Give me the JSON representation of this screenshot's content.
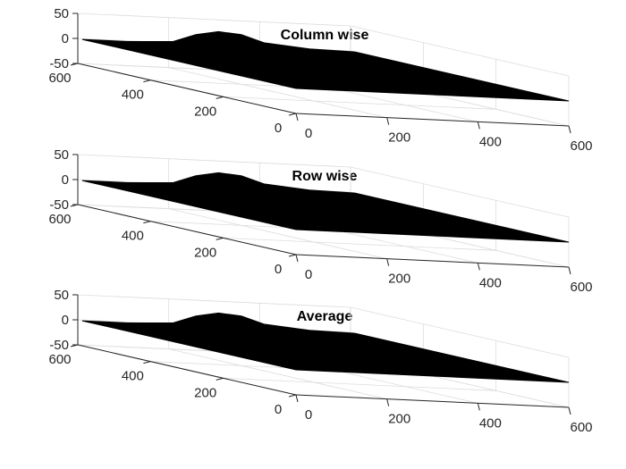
{
  "chart_data": [
    {
      "type": "surface",
      "title": "Column wise",
      "xlabel": "",
      "ylabel": "",
      "zlabel": "",
      "x_ticks": [
        "0",
        "200",
        "400",
        "600"
      ],
      "y_ticks": [
        "0",
        "200",
        "400",
        "600"
      ],
      "z_ticks": [
        "-50",
        "0",
        "50"
      ],
      "xlim": [
        0,
        600
      ],
      "ylim": [
        0,
        600
      ],
      "zlim": [
        -50,
        50
      ],
      "grid": true,
      "surface_color": "#000000",
      "profile": {
        "x": [
          0,
          100,
          200,
          250,
          300,
          350,
          400,
          500,
          600
        ],
        "z": [
          0,
          0,
          4,
          20,
          28,
          24,
          10,
          2,
          0
        ]
      }
    },
    {
      "type": "surface",
      "title": "Row wise",
      "xlabel": "",
      "ylabel": "",
      "zlabel": "",
      "x_ticks": [
        "0",
        "200",
        "400",
        "600"
      ],
      "y_ticks": [
        "0",
        "200",
        "400",
        "600"
      ],
      "z_ticks": [
        "-50",
        "0",
        "50"
      ],
      "xlim": [
        0,
        600
      ],
      "ylim": [
        0,
        600
      ],
      "zlim": [
        -50,
        50
      ],
      "grid": true,
      "surface_color": "#000000",
      "profile": {
        "x": [
          0,
          100,
          200,
          250,
          300,
          350,
          400,
          500,
          600
        ],
        "z": [
          0,
          0,
          4,
          20,
          28,
          24,
          10,
          2,
          0
        ]
      }
    },
    {
      "type": "surface",
      "title": "Average",
      "xlabel": "",
      "ylabel": "",
      "zlabel": "",
      "x_ticks": [
        "0",
        "200",
        "400",
        "600"
      ],
      "y_ticks": [
        "0",
        "200",
        "400",
        "600"
      ],
      "z_ticks": [
        "-50",
        "0",
        "50"
      ],
      "xlim": [
        0,
        600
      ],
      "ylim": [
        0,
        600
      ],
      "zlim": [
        -50,
        50
      ],
      "grid": true,
      "surface_color": "#000000",
      "profile": {
        "x": [
          0,
          100,
          200,
          250,
          300,
          350,
          400,
          500,
          600
        ],
        "z": [
          0,
          0,
          4,
          20,
          28,
          24,
          10,
          2,
          0
        ]
      }
    }
  ]
}
